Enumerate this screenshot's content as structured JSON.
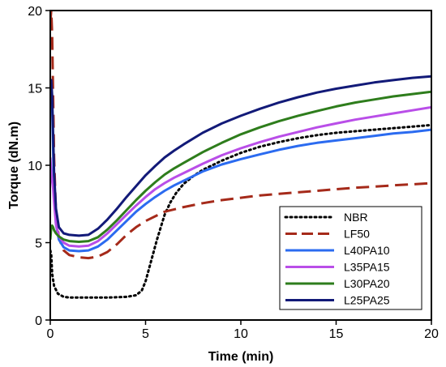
{
  "chart_data": {
    "type": "line",
    "xlabel": "Time (min)",
    "ylabel": "Torque (dN.m)",
    "xlim": [
      0,
      20
    ],
    "ylim": [
      0,
      20
    ],
    "xticks": [
      0,
      5,
      10,
      15,
      20
    ],
    "yticks": [
      0,
      5,
      10,
      15,
      20
    ],
    "grid": false,
    "legend_position": "bottom-right",
    "series": [
      {
        "name": "NBR",
        "color": "#000000",
        "dash": "dotted",
        "x": [
          0,
          0.05,
          0.1,
          0.2,
          0.4,
          0.7,
          1.0,
          1.5,
          2,
          3,
          4,
          4.5,
          4.8,
          5.0,
          5.2,
          5.4,
          5.6,
          5.8,
          6.0,
          6.3,
          6.6,
          7,
          7.5,
          8,
          9,
          10,
          11,
          12,
          13,
          14,
          15,
          16,
          17,
          18,
          19,
          20
        ],
        "y": [
          4.5,
          4.2,
          3.0,
          2.2,
          1.7,
          1.5,
          1.45,
          1.45,
          1.45,
          1.45,
          1.5,
          1.6,
          1.9,
          2.5,
          3.4,
          4.3,
          5.2,
          6.0,
          6.8,
          7.6,
          8.2,
          8.8,
          9.3,
          9.7,
          10.3,
          10.8,
          11.2,
          11.5,
          11.75,
          11.95,
          12.1,
          12.2,
          12.3,
          12.4,
          12.5,
          12.6
        ]
      },
      {
        "name": "LF50",
        "color": "#a52a1a",
        "dash": "dashed",
        "x": [
          0,
          0.05,
          0.1,
          0.15,
          0.2,
          0.3,
          0.45,
          0.7,
          1.0,
          1.5,
          2.0,
          2.5,
          3.0,
          3.5,
          4.0,
          4.5,
          5.0,
          5.5,
          6.0,
          7,
          8,
          9,
          10,
          11,
          12,
          13,
          14,
          15,
          16,
          17,
          18,
          19,
          20
        ],
        "y": [
          19.2,
          20.0,
          18.5,
          14.5,
          10.5,
          7.0,
          5.3,
          4.5,
          4.2,
          4.05,
          4.0,
          4.1,
          4.4,
          4.9,
          5.5,
          6.0,
          6.4,
          6.7,
          7.0,
          7.3,
          7.55,
          7.75,
          7.9,
          8.05,
          8.15,
          8.25,
          8.35,
          8.45,
          8.55,
          8.62,
          8.7,
          8.77,
          8.85
        ]
      },
      {
        "name": "L40PA10",
        "color": "#2b6bf0",
        "dash": "solid",
        "x": [
          0,
          0.05,
          0.1,
          0.15,
          0.2,
          0.3,
          0.45,
          0.7,
          1.0,
          1.5,
          2.0,
          2.5,
          3.0,
          3.5,
          4.0,
          4.5,
          5.0,
          5.5,
          6.0,
          6.5,
          7,
          8,
          9,
          10,
          11,
          12,
          13,
          14,
          15,
          16,
          17,
          18,
          19,
          20
        ],
        "y": [
          14.0,
          15.2,
          14.0,
          11.0,
          8.3,
          6.2,
          5.2,
          4.7,
          4.5,
          4.45,
          4.5,
          4.75,
          5.2,
          5.8,
          6.4,
          7.0,
          7.5,
          7.95,
          8.35,
          8.7,
          9.0,
          9.6,
          10.05,
          10.4,
          10.7,
          11.0,
          11.25,
          11.45,
          11.6,
          11.75,
          11.9,
          12.05,
          12.15,
          12.3
        ]
      },
      {
        "name": "L35PA15",
        "color": "#b94ee8",
        "dash": "solid",
        "x": [
          0,
          0.05,
          0.1,
          0.15,
          0.2,
          0.3,
          0.45,
          0.7,
          1.0,
          1.5,
          2.0,
          2.5,
          3.0,
          3.5,
          4.0,
          4.5,
          5.0,
          5.5,
          6.0,
          6.5,
          7,
          8,
          9,
          10,
          11,
          12,
          13,
          14,
          15,
          16,
          17,
          18,
          19,
          20
        ],
        "y": [
          10.5,
          9.5,
          9.0,
          8.5,
          7.6,
          6.2,
          5.4,
          5.0,
          4.8,
          4.75,
          4.8,
          5.1,
          5.6,
          6.2,
          6.8,
          7.4,
          7.95,
          8.45,
          8.85,
          9.2,
          9.5,
          10.1,
          10.65,
          11.1,
          11.5,
          11.85,
          12.15,
          12.45,
          12.7,
          12.95,
          13.15,
          13.35,
          13.55,
          13.75
        ]
      },
      {
        "name": "L30PA20",
        "color": "#2e7d1c",
        "dash": "solid",
        "x": [
          0,
          0.05,
          0.1,
          0.15,
          0.2,
          0.3,
          0.45,
          0.7,
          1.0,
          1.5,
          2.0,
          2.5,
          3.0,
          3.5,
          4.0,
          4.5,
          5.0,
          5.5,
          6.0,
          6.5,
          7,
          8,
          9,
          10,
          11,
          12,
          13,
          14,
          15,
          16,
          17,
          18,
          19,
          20
        ],
        "y": [
          5.2,
          6.0,
          6.1,
          6.0,
          5.8,
          5.6,
          5.4,
          5.2,
          5.1,
          5.05,
          5.1,
          5.35,
          5.85,
          6.45,
          7.1,
          7.75,
          8.35,
          8.9,
          9.4,
          9.8,
          10.15,
          10.85,
          11.45,
          12.0,
          12.45,
          12.85,
          13.2,
          13.5,
          13.8,
          14.05,
          14.25,
          14.45,
          14.6,
          14.75
        ]
      },
      {
        "name": "L25PA25",
        "color": "#121a78",
        "dash": "solid",
        "x": [
          0,
          0.05,
          0.1,
          0.15,
          0.2,
          0.3,
          0.45,
          0.7,
          1.0,
          1.5,
          2.0,
          2.5,
          3.0,
          3.5,
          4.0,
          4.5,
          5.0,
          5.5,
          6.0,
          6.5,
          7,
          8,
          9,
          10,
          11,
          12,
          13,
          14,
          15,
          16,
          17,
          18,
          19,
          20
        ],
        "y": [
          15.0,
          15.5,
          14.5,
          12.0,
          9.5,
          7.2,
          6.0,
          5.6,
          5.5,
          5.45,
          5.5,
          5.9,
          6.5,
          7.2,
          7.95,
          8.65,
          9.35,
          9.95,
          10.5,
          10.95,
          11.35,
          12.1,
          12.7,
          13.2,
          13.65,
          14.05,
          14.4,
          14.7,
          14.95,
          15.15,
          15.35,
          15.5,
          15.65,
          15.75
        ]
      }
    ]
  }
}
